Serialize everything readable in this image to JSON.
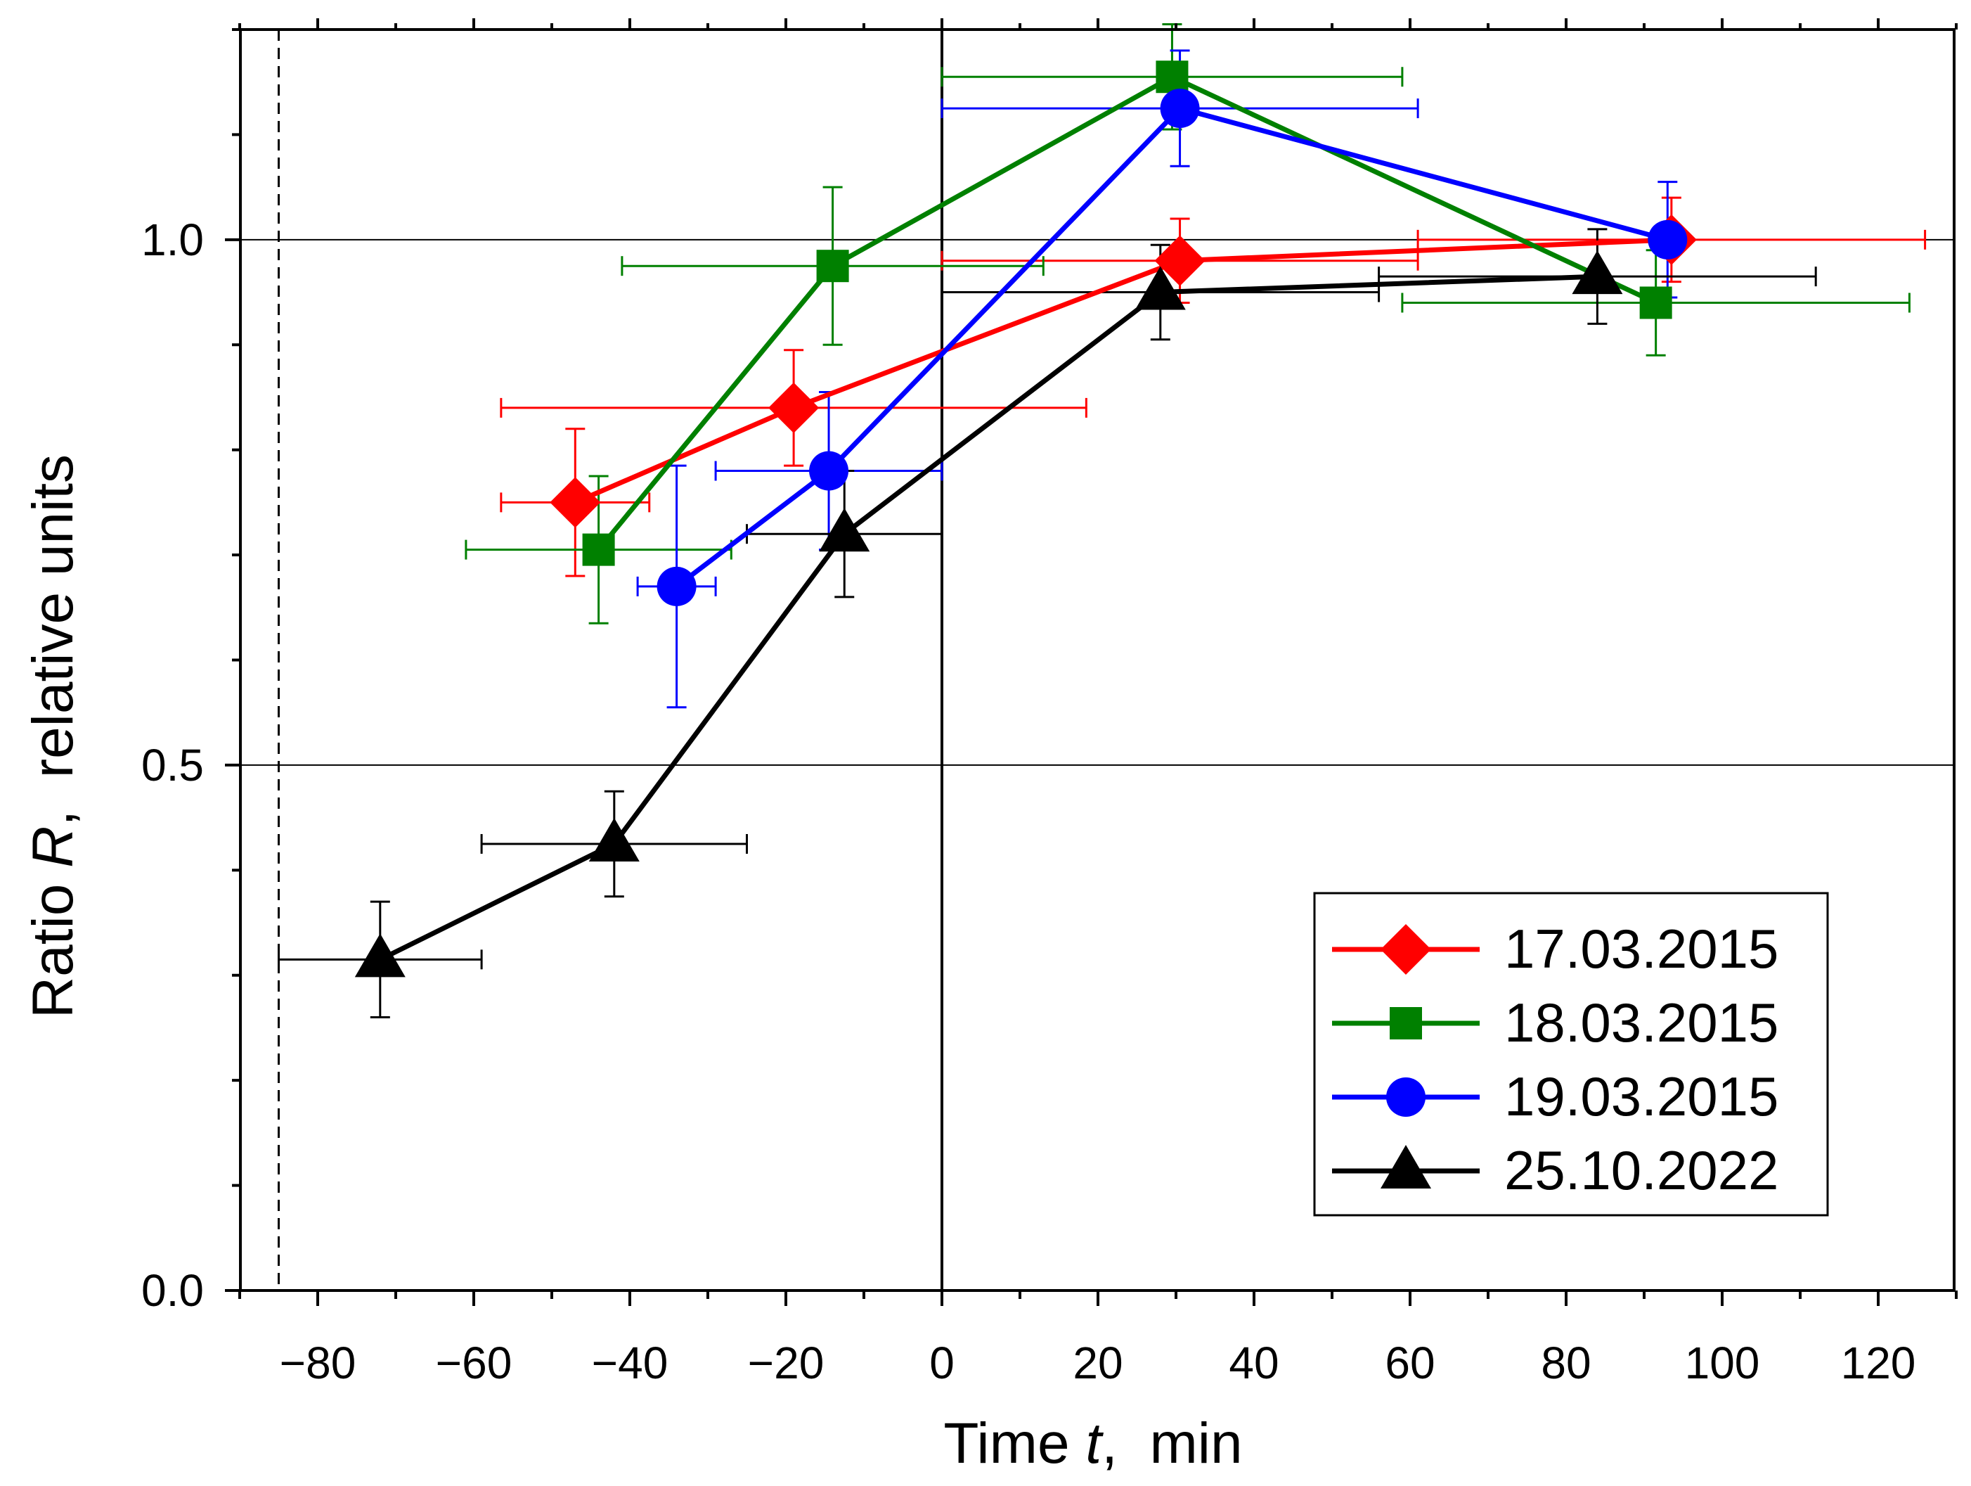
{
  "chart_data": {
    "type": "scatter",
    "title": "",
    "xlabel": {
      "prefix": "Time ",
      "var": "t",
      "suffix": ",  min"
    },
    "ylabel": {
      "prefix": "Ratio ",
      "var": "R",
      "suffix": ",  relative units"
    },
    "xlim": [
      -90,
      130
    ],
    "ylim": [
      0.0,
      1.2
    ],
    "xticks": [
      -80,
      -60,
      -40,
      -20,
      0,
      20,
      40,
      60,
      80,
      100,
      120
    ],
    "xtick_labels": [
      "−80",
      "−60",
      "−40",
      "−20",
      "0",
      "20",
      "40",
      "60",
      "80",
      "100",
      "120"
    ],
    "yticks": [
      0.0,
      0.5,
      1.0
    ],
    "ytick_labels": [
      "0.0",
      "0.5",
      "1.0"
    ],
    "reference_lines": {
      "horizontal": [
        0.5,
        1.0
      ],
      "vertical_solid": 0,
      "vertical_dashed": -85
    },
    "legend_position": "bottom-right",
    "series": [
      {
        "name": "17.03.2015",
        "color": "#ff0000",
        "marker": "diamond",
        "points": [
          {
            "x": -47,
            "y": 0.75,
            "xerr": 9.5,
            "yerr": 0.07
          },
          {
            "x": -19,
            "y": 0.84,
            "xerr": 37.5,
            "yerr": 0.055
          },
          {
            "x": 30.5,
            "y": 0.98,
            "xerr": 30.5,
            "yerr": 0.04
          },
          {
            "x": 93.5,
            "y": 1.0,
            "xerr": 32.5,
            "yerr": 0.04
          }
        ]
      },
      {
        "name": "18.03.2015",
        "color": "#008000",
        "marker": "square",
        "points": [
          {
            "x": -44,
            "y": 0.705,
            "xerr": 17,
            "yerr": 0.07
          },
          {
            "x": -14,
            "y": 0.975,
            "xerr": 27,
            "yerr": 0.075
          },
          {
            "x": 29.5,
            "y": 1.155,
            "xerr": 29.5,
            "yerr": 0.05
          },
          {
            "x": 91.5,
            "y": 0.94,
            "xerr": 32.5,
            "yerr": 0.05
          }
        ]
      },
      {
        "name": "19.03.2015",
        "color": "#0000ff",
        "marker": "circle",
        "points": [
          {
            "x": -34,
            "y": 0.67,
            "xerr": 5,
            "yerr": 0.115
          },
          {
            "x": -14.5,
            "y": 0.78,
            "xerr": 14.5,
            "yerr": 0.075
          },
          {
            "x": 30.5,
            "y": 1.125,
            "xerr": 30.5,
            "yerr": 0.055
          },
          {
            "x": 93,
            "y": 1.0,
            "xerr": 0,
            "yerr": 0.055
          }
        ]
      },
      {
        "name": "25.10.2022",
        "color": "#000000",
        "marker": "triangle",
        "points": [
          {
            "x": -72,
            "y": 0.315,
            "xerr": 13,
            "yerr": 0.055
          },
          {
            "x": -42,
            "y": 0.425,
            "xerr": 17,
            "yerr": 0.05
          },
          {
            "x": -12.5,
            "y": 0.72,
            "xerr": 12.5,
            "yerr": 0.06
          },
          {
            "x": 28,
            "y": 0.95,
            "xerr": 28,
            "yerr": 0.045
          },
          {
            "x": 84,
            "y": 0.965,
            "xerr": 28,
            "yerr": 0.045
          }
        ]
      }
    ]
  }
}
